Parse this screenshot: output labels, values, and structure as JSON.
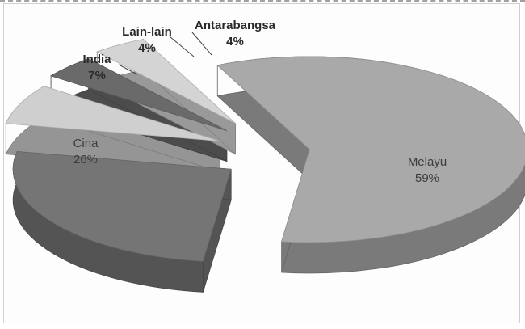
{
  "chart_data": {
    "type": "pie",
    "style": "3d-exploded",
    "title": "",
    "categories": [
      "Melayu",
      "Cina",
      "India",
      "Lain-lain",
      "Antarabangsa"
    ],
    "values": [
      59,
      26,
      7,
      4,
      4
    ],
    "value_labels": [
      "59%",
      "26%",
      "7%",
      "4%",
      "4%"
    ],
    "colors": {
      "Melayu": "#a9a9a9",
      "Cina": "#757575",
      "India": "#cfcfcf",
      "Lain-lain": "#6a6a6a",
      "Antarabangsa": "#d4d4d4"
    },
    "legend": "none"
  }
}
